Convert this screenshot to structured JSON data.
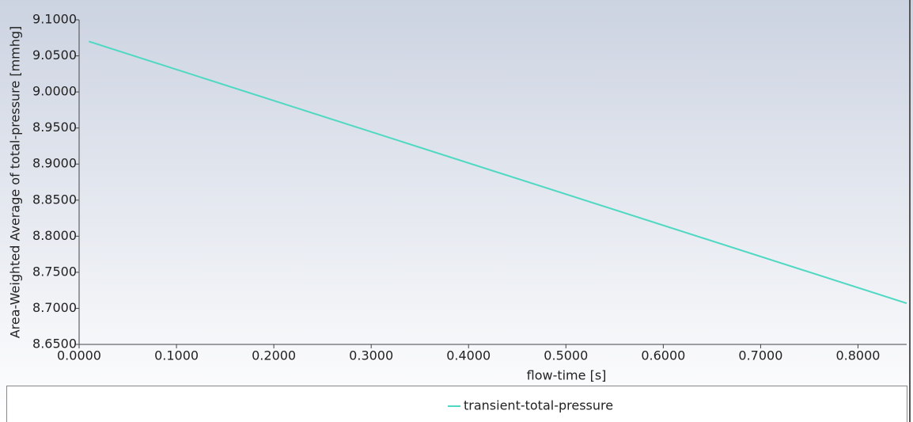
{
  "chart_data": {
    "type": "line",
    "x_label": "flow-time [s]",
    "y_label": "Area-Weighted Average of total-pressure [mmhg]",
    "x": [
      0.01,
      0.85
    ],
    "series": [
      {
        "name": "transient-total-pressure",
        "color": "#4fd8c2",
        "values": [
          9.07,
          8.707
        ]
      }
    ],
    "xlim": [
      0,
      0.85
    ],
    "ylim": [
      8.65,
      9.1
    ],
    "xticks": [
      {
        "value": 0,
        "label": "0.0000"
      },
      {
        "value": 0.1,
        "label": "0.1000"
      },
      {
        "value": 0.2,
        "label": "0.2000"
      },
      {
        "value": 0.3,
        "label": "0.3000"
      },
      {
        "value": 0.4,
        "label": "0.4000"
      },
      {
        "value": 0.5,
        "label": "0.5000"
      },
      {
        "value": 0.6,
        "label": "0.6000"
      },
      {
        "value": 0.7,
        "label": "0.7000"
      },
      {
        "value": 0.8,
        "label": "0.8000"
      }
    ],
    "yticks": [
      {
        "value": 8.65,
        "label": "8.6500"
      },
      {
        "value": 8.7,
        "label": "8.7000"
      },
      {
        "value": 8.75,
        "label": "8.7500"
      },
      {
        "value": 8.8,
        "label": "8.8000"
      },
      {
        "value": 8.85,
        "label": "8.8500"
      },
      {
        "value": 8.9,
        "label": "8.9000"
      },
      {
        "value": 8.95,
        "label": "8.9500"
      },
      {
        "value": 9.0,
        "label": "9.0000"
      },
      {
        "value": 9.05,
        "label": "9.0500"
      },
      {
        "value": 9.1,
        "label": "9.1000"
      }
    ]
  }
}
